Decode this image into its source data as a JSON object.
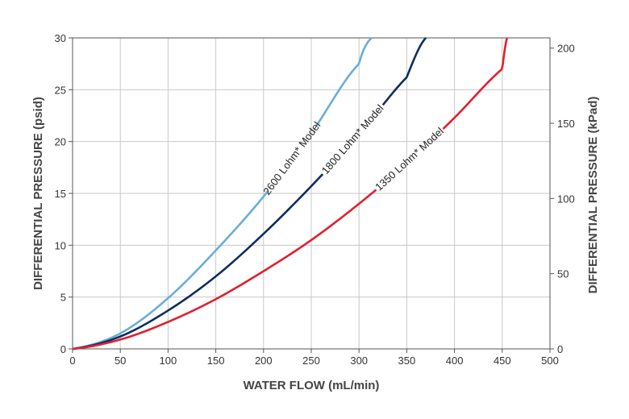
{
  "chart_data": {
    "type": "line",
    "xlabel": "WATER FLOW (mL/min)",
    "ylabel": "DIFFERENTIAL PRESSURE (psid)",
    "ylabel_right": "DIFFERENTIAL PRESSURE (kPad)",
    "xlim": [
      0,
      500
    ],
    "ylim": [
      0,
      30
    ],
    "ylim_right": [
      0,
      206.8
    ],
    "x_ticks": [
      "0",
      "50",
      "100",
      "150",
      "200",
      "250",
      "300",
      "350",
      "400",
      "450",
      "500"
    ],
    "y_ticks": [
      "0",
      "5",
      "10",
      "15",
      "20",
      "25",
      "30"
    ],
    "y_ticks_right": [
      "0",
      "50",
      "100",
      "150",
      "200"
    ],
    "grid": true,
    "series": [
      {
        "name": "2600 Lohm* Model",
        "color": "#6aaed6",
        "x": [
          0,
          50,
          100,
          150,
          200,
          250,
          300,
          313
        ],
        "y": [
          0,
          1.5,
          4.9,
          9.5,
          14.7,
          20.8,
          27.5,
          30
        ]
      },
      {
        "name": "1800 Lohm* Model",
        "color": "#0f2d5e",
        "x": [
          0,
          50,
          100,
          150,
          200,
          250,
          300,
          350,
          370
        ],
        "y": [
          0,
          1.2,
          3.7,
          7.0,
          11.1,
          15.7,
          20.7,
          26.2,
          30
        ]
      },
      {
        "name": "1350 Lohm* Model",
        "color": "#e0202e",
        "x": [
          0,
          50,
          100,
          150,
          200,
          250,
          300,
          350,
          400,
          450,
          455
        ],
        "y": [
          0,
          0.9,
          2.6,
          4.8,
          7.5,
          10.5,
          14.0,
          17.9,
          22.3,
          27.0,
          30
        ]
      }
    ]
  }
}
